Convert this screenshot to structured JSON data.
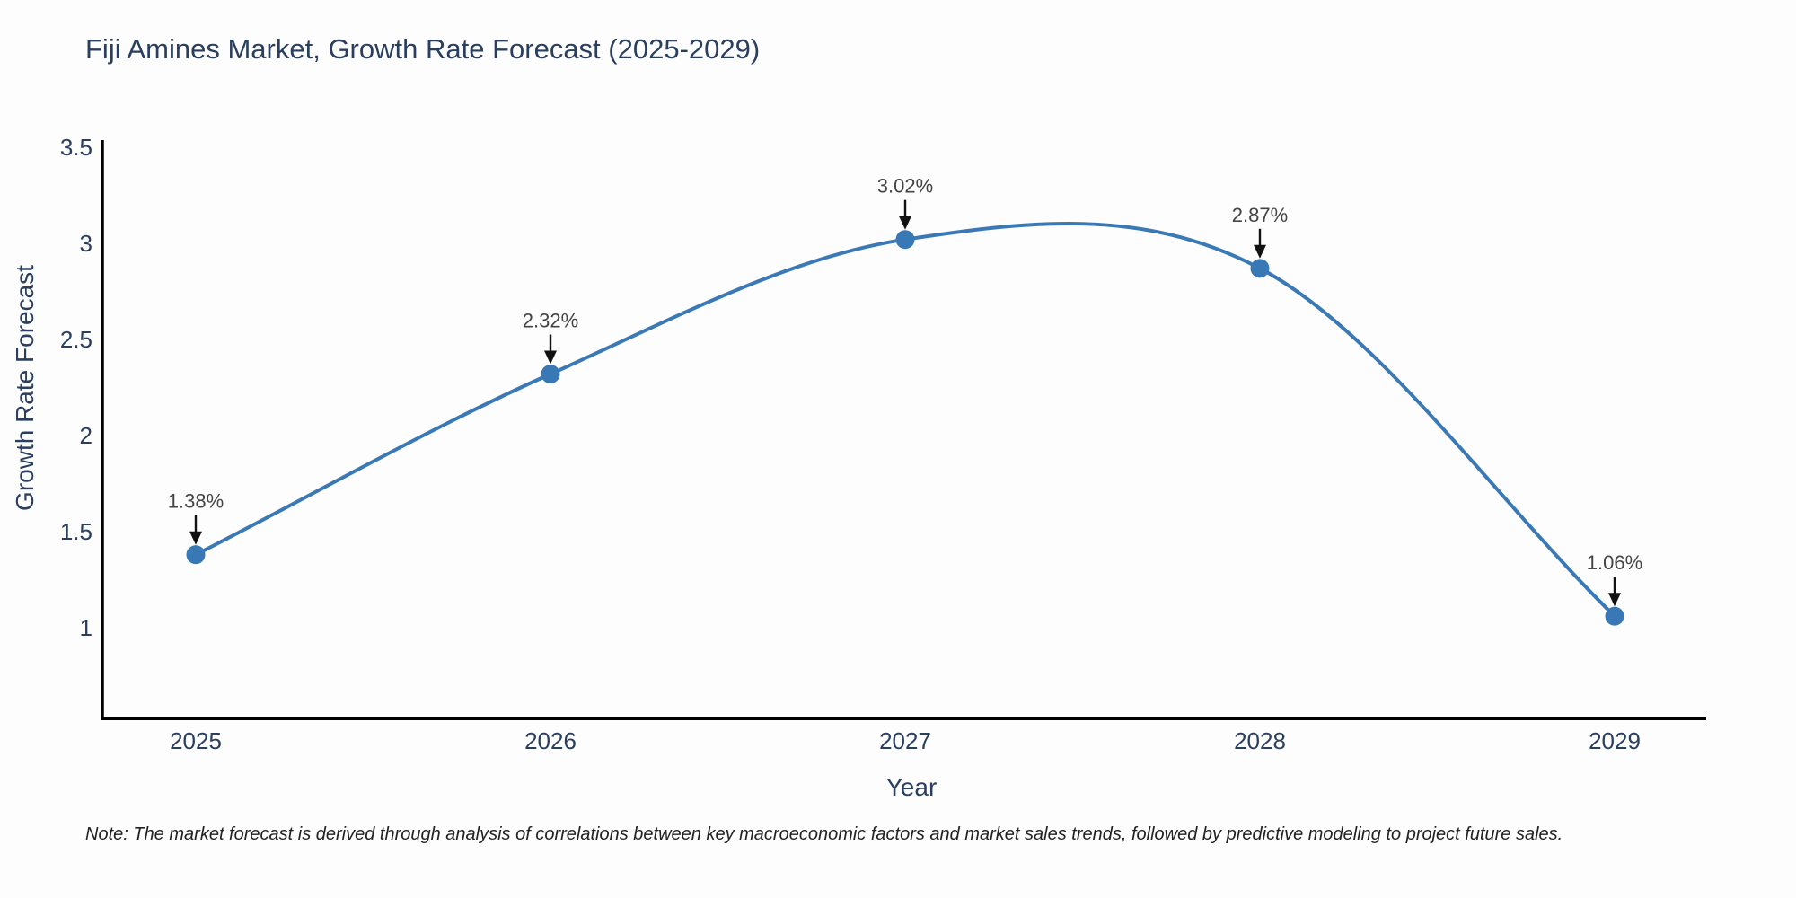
{
  "chart_data": {
    "type": "line",
    "title": "Fiji Amines Market, Growth Rate Forecast (2025-2029)",
    "xlabel": "Year",
    "ylabel": "Growth Rate Forecast",
    "x": [
      2025,
      2026,
      2027,
      2028,
      2029
    ],
    "series": [
      {
        "name": "Growth Rate Forecast",
        "values": [
          1.38,
          2.32,
          3.02,
          2.87,
          1.06
        ]
      }
    ],
    "point_labels": [
      "1.38%",
      "2.32%",
      "3.02%",
      "2.87%",
      "1.06%"
    ],
    "xticks": [
      "2025",
      "2026",
      "2027",
      "2028",
      "2029"
    ],
    "yticks": [
      "1",
      "1.5",
      "2",
      "2.5",
      "3",
      "3.5"
    ],
    "ytick_values": [
      1,
      1.5,
      2,
      2.5,
      3,
      3.5
    ],
    "ylim": [
      0.53,
      3.53
    ],
    "xlim": [
      2024.74,
      2029.26
    ],
    "grid": false,
    "legend": false,
    "line_shape": "spline",
    "colors": {
      "line": "#3a79b5",
      "marker": "#3879b5",
      "axis_line": "#000000",
      "axis_text": "#2a3f5f",
      "annotation_text": "#444444",
      "arrow": "#111111",
      "background": "#fdfdfe"
    },
    "note": "Note: The market forecast is derived through analysis of correlations between key macroeconomic factors and market sales trends, followed by predictive modeling to project future sales."
  }
}
